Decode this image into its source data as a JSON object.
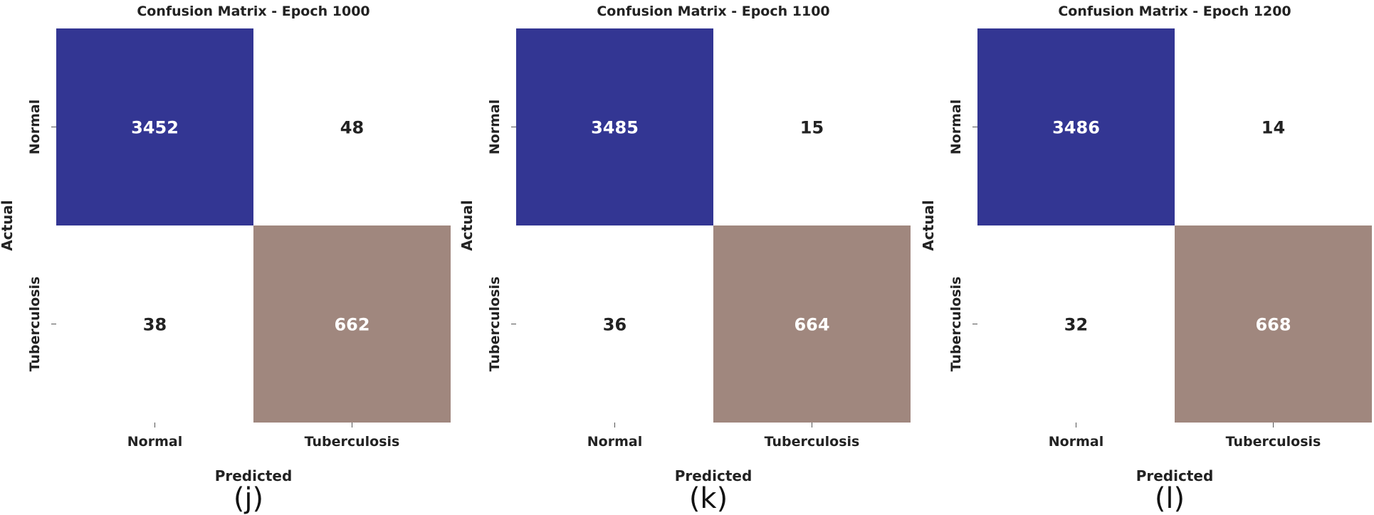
{
  "colors": {
    "high": "#333693",
    "mid": "#a0877e",
    "low": "#ffffff",
    "text_dark": "#222222",
    "text_light": "#ffffff"
  },
  "chart_data": [
    {
      "type": "heatmap",
      "title": "Confusion Matrix - Epoch 1000",
      "xlabel": "Predicted",
      "ylabel": "Actual",
      "x_categories": [
        "Normal",
        "Tuberculosis"
      ],
      "y_categories": [
        "Normal",
        "Tuberculosis"
      ],
      "values": [
        [
          3452,
          48
        ],
        [
          38,
          662
        ]
      ],
      "caption": "(j)"
    },
    {
      "type": "heatmap",
      "title": "Confusion Matrix - Epoch 1100",
      "xlabel": "Predicted",
      "ylabel": "Actual",
      "x_categories": [
        "Normal",
        "Tuberculosis"
      ],
      "y_categories": [
        "Normal",
        "Tuberculosis"
      ],
      "values": [
        [
          3485,
          15
        ],
        [
          36,
          664
        ]
      ],
      "caption": "(k)"
    },
    {
      "type": "heatmap",
      "title": "Confusion Matrix - Epoch 1200",
      "xlabel": "Predicted",
      "ylabel": "Actual",
      "x_categories": [
        "Normal",
        "Tuberculosis"
      ],
      "y_categories": [
        "Normal",
        "Tuberculosis"
      ],
      "values": [
        [
          3486,
          14
        ],
        [
          32,
          668
        ]
      ],
      "caption": "(l)"
    }
  ]
}
